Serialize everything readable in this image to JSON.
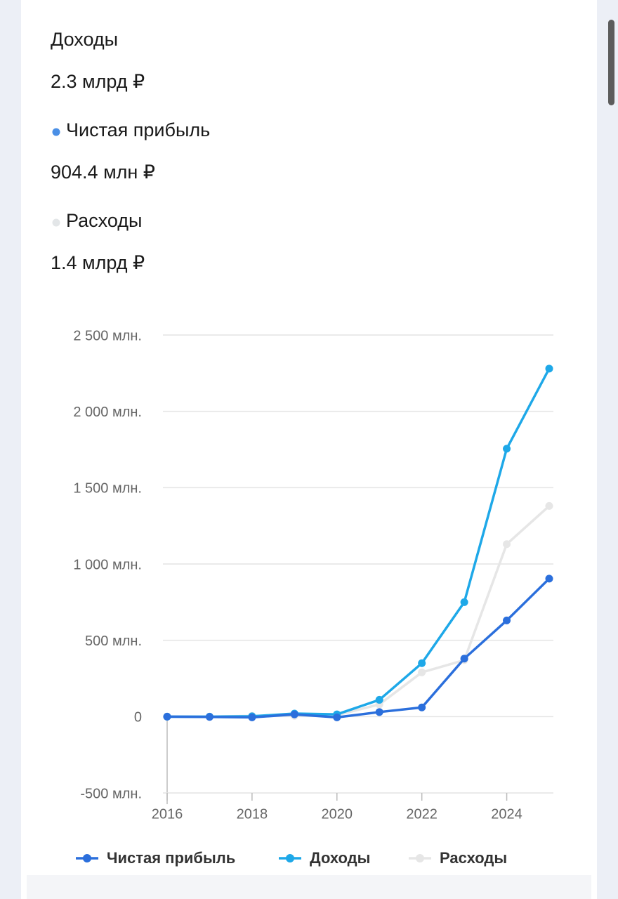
{
  "summary": [
    {
      "label": "Доходы",
      "value": "2.3 млрд ₽"
    },
    {
      "label": "Чистая прибыль",
      "value": "904.4 млн ₽",
      "color": "#4a8fe6"
    },
    {
      "label": "Расходы",
      "value": "1.4 млрд ₽",
      "color": "#e3e6e8"
    }
  ],
  "chart_data": {
    "type": "line",
    "x": [
      2016,
      2017,
      2018,
      2019,
      2020,
      2021,
      2022,
      2023,
      2024,
      2025
    ],
    "xlim": [
      2016,
      2025
    ],
    "xticks": [
      2016,
      2018,
      2020,
      2022,
      2024
    ],
    "ylim": [
      -500,
      2500
    ],
    "yticks": [
      {
        "value": -500,
        "label": "-500 млн."
      },
      0,
      {
        "value": 500,
        "label": "500 млн."
      },
      {
        "value": 1000,
        "label": "1 000 млн."
      },
      {
        "value": 1500,
        "label": "1 500 млн."
      },
      {
        "value": 2000,
        "label": "2 000 млн."
      },
      {
        "value": 2500,
        "label": "2 500 млн."
      }
    ],
    "grid": true,
    "legend": "bottom",
    "series": [
      {
        "name": "Чистая прибыль",
        "color": "#2b6fdc",
        "values": [
          0,
          -2,
          -5,
          15,
          -5,
          30,
          60,
          380,
          630,
          904
        ]
      },
      {
        "name": "Доходы",
        "color": "#1ea8e8",
        "values": [
          0,
          0,
          2,
          20,
          15,
          110,
          350,
          750,
          1755,
          2280
        ]
      },
      {
        "name": "Расходы",
        "color": "#e6e6e6",
        "values": [
          0,
          0,
          5,
          5,
          10,
          80,
          290,
          370,
          1130,
          1380
        ]
      }
    ]
  }
}
